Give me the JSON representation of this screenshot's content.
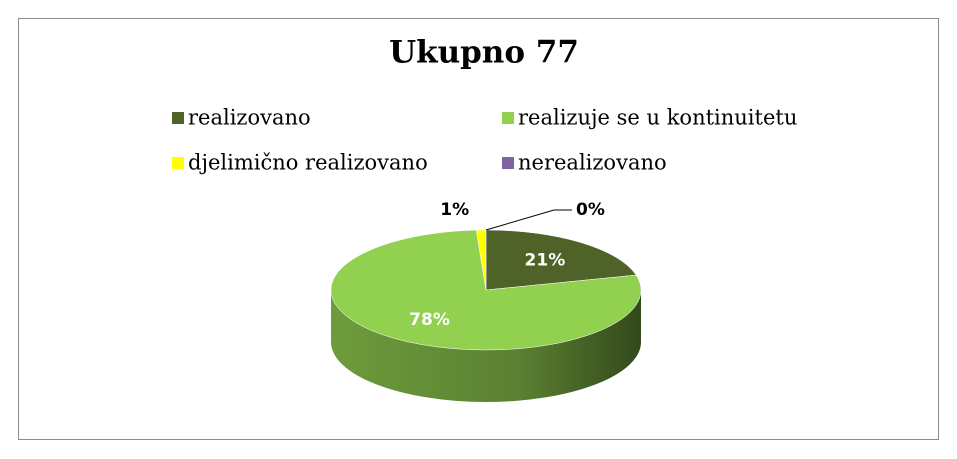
{
  "chart_data": {
    "type": "pie3d",
    "title": "Ukupno 77",
    "categories": [
      "realizovano",
      "realizuje se u kontinuitetu",
      "djelimično realizovano",
      "nerealizovano"
    ],
    "values": [
      21,
      78,
      1,
      0
    ],
    "value_labels": [
      "21%",
      "78%",
      "1%",
      "0%"
    ],
    "colors": [
      "#4f6228",
      "#92d050",
      "#ffff00",
      "#8064a2"
    ],
    "legend": "top"
  }
}
